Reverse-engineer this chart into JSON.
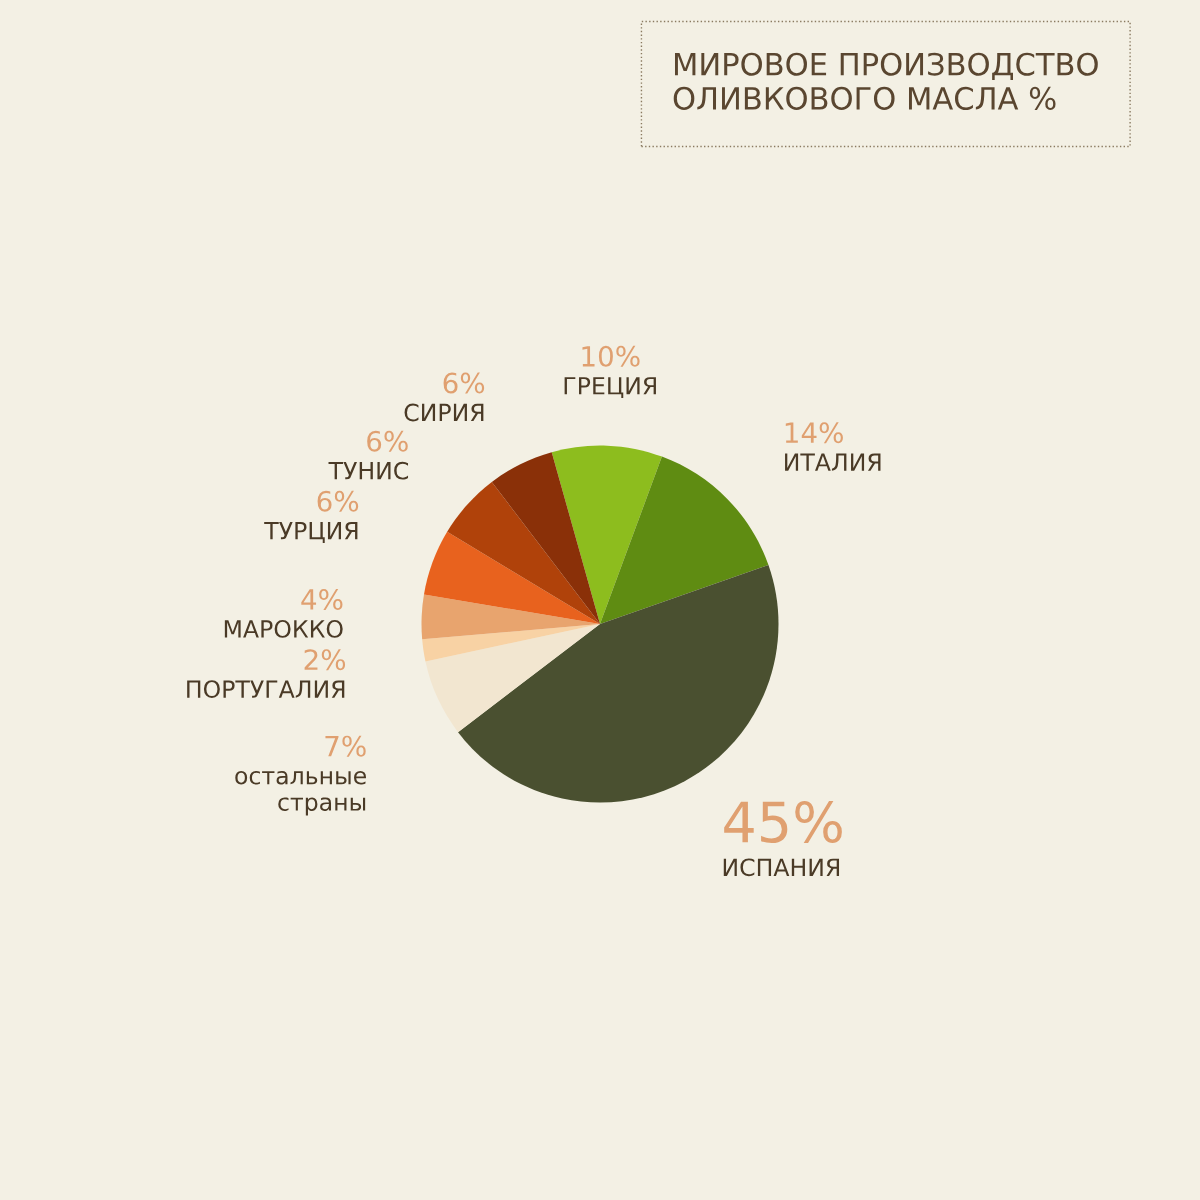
{
  "chart_data": {
    "type": "pie",
    "title": "МИРОВОЕ ПРОИЗВОДСТВО\nОЛИВКОВОГО МАСЛА %",
    "categories": [
      "ГРЕЦИЯ",
      "ИТАЛИЯ",
      "ИСПАНИЯ",
      "остальные\nстраны",
      "ПОРТУГАЛИЯ",
      "МАРОККО",
      "ТУРЦИЯ",
      "ТУНИС",
      "СИРИЯ"
    ],
    "values": [
      10,
      14,
      45,
      7,
      2,
      4,
      6,
      6,
      6
    ],
    "colors": [
      "#8dbd1e",
      "#5f8c12",
      "#4a5030",
      "#f2e6d0",
      "#f8d2a4",
      "#e8a46e",
      "#e8621e",
      "#b0420a",
      "#8a3008"
    ],
    "value_labels": [
      "10%",
      "14%",
      "45%",
      "7%",
      "2%",
      "4%",
      "6%",
      "6%",
      "6%"
    ],
    "legend": false
  }
}
